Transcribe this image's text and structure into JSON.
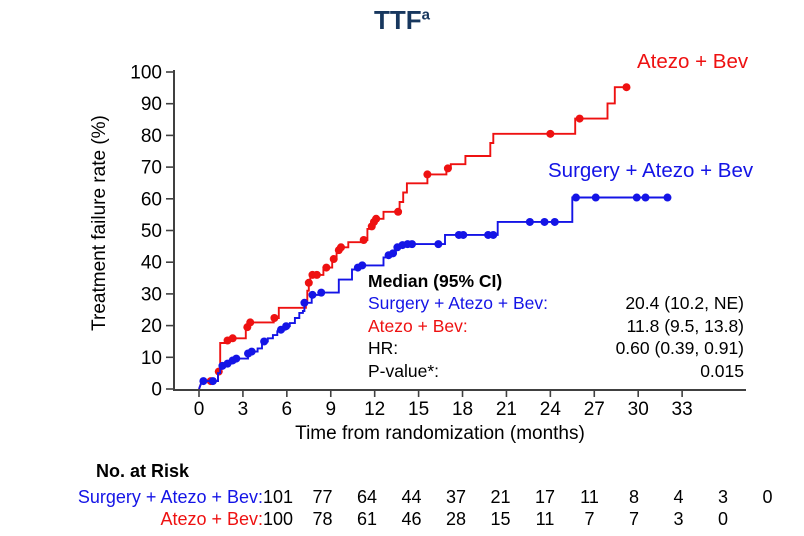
{
  "title": {
    "text": "TTF",
    "sup": "a",
    "color": "#17375e"
  },
  "axis": {
    "xlabel": "Time from randomization (months)",
    "ylabel": "Treatment failure rate (%)"
  },
  "chart_data": {
    "type": "line",
    "subtype": "kaplan-meier-step",
    "title": "TTF(a)",
    "xlabel": "Time from randomization (months)",
    "ylabel": "Treatment failure rate (%)",
    "xlim": [
      0,
      34.5
    ],
    "ylim": [
      0,
      100
    ],
    "x_ticks": [
      0,
      3,
      6,
      9,
      12,
      15,
      18,
      21,
      24,
      27,
      30,
      33
    ],
    "y_ticks": [
      0,
      10,
      20,
      30,
      40,
      50,
      60,
      70,
      80,
      90,
      100
    ],
    "grid": "off",
    "legend_position": "inline-labels",
    "series": [
      {
        "name": "Atezo + Bev",
        "color": "#ee1111",
        "steps": [
          [
            0,
            0
          ],
          [
            0.2,
            2.5
          ],
          [
            1.3,
            2.5
          ],
          [
            1.3,
            5.5
          ],
          [
            1.45,
            5.5
          ],
          [
            1.45,
            14.5
          ],
          [
            1.9,
            14.5
          ],
          [
            1.9,
            15.3
          ],
          [
            2.3,
            15.3
          ],
          [
            2.3,
            16
          ],
          [
            3.2,
            16
          ],
          [
            3.2,
            19
          ],
          [
            3.45,
            19
          ],
          [
            3.45,
            21
          ],
          [
            5.1,
            21
          ],
          [
            5.1,
            22.4
          ],
          [
            5.45,
            22.4
          ],
          [
            5.45,
            25.6
          ],
          [
            7.3,
            25.6
          ],
          [
            7.3,
            28
          ],
          [
            7.4,
            28
          ],
          [
            7.4,
            31
          ],
          [
            7.5,
            31
          ],
          [
            7.5,
            33.5
          ],
          [
            7.6,
            33.5
          ],
          [
            7.6,
            36
          ],
          [
            8.5,
            36
          ],
          [
            8.5,
            38.3
          ],
          [
            9.1,
            38.3
          ],
          [
            9.1,
            41
          ],
          [
            9.4,
            41
          ],
          [
            9.4,
            43.1
          ],
          [
            9.6,
            43.1
          ],
          [
            9.6,
            44.7
          ],
          [
            10.2,
            44.7
          ],
          [
            10.2,
            46.3
          ],
          [
            11.2,
            46.3
          ],
          [
            11.2,
            47
          ],
          [
            11.5,
            47
          ],
          [
            11.5,
            50.5
          ],
          [
            11.75,
            50.5
          ],
          [
            11.75,
            51.3
          ],
          [
            11.9,
            51.3
          ],
          [
            11.9,
            52.7
          ],
          [
            12.05,
            52.7
          ],
          [
            12.05,
            53.7
          ],
          [
            12.6,
            53.7
          ],
          [
            12.6,
            55.9
          ],
          [
            13.7,
            55.9
          ],
          [
            13.7,
            59
          ],
          [
            13.95,
            59
          ],
          [
            13.95,
            62
          ],
          [
            14.2,
            62
          ],
          [
            14.2,
            64.9
          ],
          [
            15.6,
            64.9
          ],
          [
            15.6,
            67.7
          ],
          [
            16.9,
            67.7
          ],
          [
            16.9,
            69.6
          ],
          [
            17.2,
            69.6
          ],
          [
            17.2,
            70.9
          ],
          [
            18.2,
            70.9
          ],
          [
            18.2,
            73.5
          ],
          [
            19.9,
            73.5
          ],
          [
            19.9,
            77.6
          ],
          [
            20.1,
            77.6
          ],
          [
            20.1,
            80.5
          ],
          [
            25.7,
            80.5
          ],
          [
            25.7,
            85.3
          ],
          [
            27.9,
            85.3
          ],
          [
            27.9,
            90.1
          ],
          [
            28.4,
            90.1
          ],
          [
            28.4,
            95.2
          ],
          [
            29.2,
            95.2
          ]
        ],
        "censors": [
          [
            0.8,
            2.5
          ],
          [
            1.35,
            5.5
          ],
          [
            1.95,
            15.3
          ],
          [
            2.3,
            16
          ],
          [
            3.3,
            19.5
          ],
          [
            3.5,
            21
          ],
          [
            5.15,
            22.4
          ],
          [
            7.5,
            33.5
          ],
          [
            7.75,
            36
          ],
          [
            8.05,
            36
          ],
          [
            8.7,
            38.3
          ],
          [
            9.2,
            41
          ],
          [
            9.55,
            43.8
          ],
          [
            9.7,
            44.7
          ],
          [
            11.25,
            47
          ],
          [
            11.8,
            51.3
          ],
          [
            11.95,
            52.7
          ],
          [
            12.1,
            53.7
          ],
          [
            13.6,
            55.9
          ],
          [
            15.6,
            67.7
          ],
          [
            17.0,
            69.6
          ],
          [
            24.0,
            80.5
          ],
          [
            26.0,
            85.3
          ],
          [
            29.2,
            95.2
          ]
        ]
      },
      {
        "name": "Surgery + Atezo + Bev",
        "color": "#1414e6",
        "steps": [
          [
            0,
            0
          ],
          [
            0.2,
            2.5
          ],
          [
            1.3,
            2.5
          ],
          [
            1.3,
            5
          ],
          [
            1.45,
            5
          ],
          [
            1.45,
            6.4
          ],
          [
            1.6,
            6.4
          ],
          [
            1.6,
            7.3
          ],
          [
            1.9,
            7.3
          ],
          [
            1.9,
            8
          ],
          [
            2.2,
            8
          ],
          [
            2.2,
            9
          ],
          [
            2.5,
            9
          ],
          [
            2.5,
            9.6
          ],
          [
            3.35,
            9.6
          ],
          [
            3.35,
            10.5
          ],
          [
            3.5,
            10.5
          ],
          [
            3.5,
            11.2
          ],
          [
            3.7,
            11.2
          ],
          [
            3.7,
            11.8
          ],
          [
            4.0,
            11.8
          ],
          [
            4.0,
            12.8
          ],
          [
            4.3,
            12.8
          ],
          [
            4.3,
            14.4
          ],
          [
            4.45,
            14.4
          ],
          [
            4.45,
            15
          ],
          [
            4.7,
            15
          ],
          [
            4.7,
            16
          ],
          [
            5.05,
            16
          ],
          [
            5.05,
            17
          ],
          [
            5.35,
            17
          ],
          [
            5.35,
            18.2
          ],
          [
            5.55,
            18.2
          ],
          [
            5.55,
            18.7
          ],
          [
            5.9,
            18.7
          ],
          [
            5.9,
            19.8
          ],
          [
            6.2,
            19.8
          ],
          [
            6.2,
            20.8
          ],
          [
            6.55,
            20.8
          ],
          [
            6.55,
            22.4
          ],
          [
            6.85,
            22.4
          ],
          [
            6.85,
            24
          ],
          [
            7.1,
            24
          ],
          [
            7.1,
            24.6
          ],
          [
            7.2,
            24.6
          ],
          [
            7.2,
            27.2
          ],
          [
            7.7,
            27.2
          ],
          [
            7.7,
            29.7
          ],
          [
            8.3,
            29.7
          ],
          [
            8.3,
            30.4
          ],
          [
            9.55,
            30.4
          ],
          [
            9.55,
            34.5
          ],
          [
            10.45,
            34.5
          ],
          [
            10.45,
            37.7
          ],
          [
            10.8,
            37.7
          ],
          [
            10.8,
            38.3
          ],
          [
            11.1,
            38.3
          ],
          [
            11.1,
            39
          ],
          [
            12.6,
            39
          ],
          [
            12.6,
            41.5
          ],
          [
            12.9,
            41.5
          ],
          [
            12.9,
            42.2
          ],
          [
            13.2,
            42.2
          ],
          [
            13.2,
            42.8
          ],
          [
            13.45,
            42.8
          ],
          [
            13.45,
            44.7
          ],
          [
            13.85,
            44.7
          ],
          [
            13.85,
            45.4
          ],
          [
            14.2,
            45.4
          ],
          [
            14.2,
            45.7
          ],
          [
            16.8,
            45.7
          ],
          [
            16.8,
            48.6
          ],
          [
            20.4,
            48.6
          ],
          [
            20.4,
            52.7
          ],
          [
            25.5,
            52.7
          ],
          [
            25.5,
            60.4
          ],
          [
            32.0,
            60.4
          ]
        ],
        "censors": [
          [
            0.3,
            2.5
          ],
          [
            0.95,
            2.5
          ],
          [
            1.6,
            7.3
          ],
          [
            1.95,
            8
          ],
          [
            2.3,
            9
          ],
          [
            2.55,
            9.6
          ],
          [
            3.35,
            11.2
          ],
          [
            3.6,
            11.8
          ],
          [
            4.45,
            15
          ],
          [
            5.6,
            18.7
          ],
          [
            5.95,
            19.8
          ],
          [
            7.2,
            27.2
          ],
          [
            7.75,
            29.7
          ],
          [
            8.35,
            30.4
          ],
          [
            10.85,
            38.3
          ],
          [
            11.15,
            39
          ],
          [
            12.95,
            42.2
          ],
          [
            13.25,
            42.8
          ],
          [
            13.55,
            44.7
          ],
          [
            13.9,
            45.4
          ],
          [
            14.25,
            45.7
          ],
          [
            14.55,
            45.7
          ],
          [
            16.35,
            45.7
          ],
          [
            17.75,
            48.6
          ],
          [
            18.05,
            48.6
          ],
          [
            19.75,
            48.6
          ],
          [
            20.1,
            48.6
          ],
          [
            22.6,
            52.7
          ],
          [
            23.6,
            52.7
          ],
          [
            24.3,
            52.7
          ],
          [
            25.75,
            60.4
          ],
          [
            27.1,
            60.4
          ],
          [
            29.9,
            60.4
          ],
          [
            30.5,
            60.4
          ],
          [
            32.0,
            60.4
          ]
        ]
      }
    ]
  },
  "stats": {
    "header": "Median (95% CI)",
    "rows": [
      {
        "label": "Surgery + Atezo + Bev:",
        "value": "20.4 (10.2, NE)",
        "color": "#1414e6"
      },
      {
        "label": "Atezo + Bev:",
        "value": "11.8 (9.5, 13.8)",
        "color": "#000000"
      },
      {
        "label": "HR:",
        "value": "0.60 (0.39, 0.91)",
        "color": "#000000"
      },
      {
        "label": "P-value*:",
        "value": "0.015",
        "color": "#000000"
      }
    ]
  },
  "risk_table": {
    "header": "No. at Risk",
    "rows": [
      {
        "label": "Surgery + Atezo + Bev:",
        "color": "#1414e6",
        "values": [
          "101",
          "77",
          "64",
          "44",
          "37",
          "21",
          "17",
          "11",
          "8",
          "4",
          "3",
          "0"
        ]
      },
      {
        "label": "Atezo + Bev:",
        "color": "#ee1111",
        "values": [
          "100",
          "78",
          "61",
          "46",
          "28",
          "15",
          "11",
          "7",
          "7",
          "3",
          "0"
        ]
      }
    ]
  },
  "colors": {
    "red": "#ee1111",
    "blue": "#1414e6",
    "axis": "#404040",
    "title_navy": "#17375e"
  }
}
